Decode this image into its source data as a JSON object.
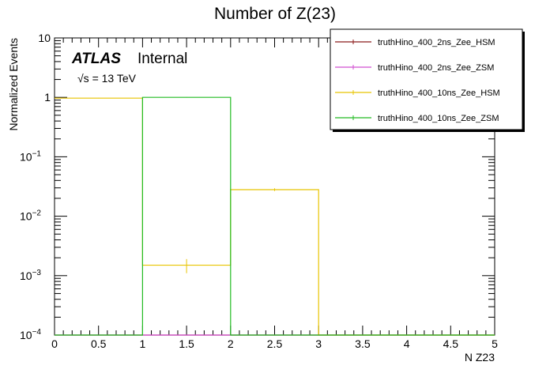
{
  "chart_data": {
    "type": "step-histogram",
    "title": "Number of Z(23)",
    "xlabel": "N Z23",
    "ylabel": "Normalized Events",
    "xlim": [
      0,
      5
    ],
    "ylim": [
      0.0001,
      10
    ],
    "yscale": "log",
    "x_ticks": [
      0,
      0.5,
      1,
      1.5,
      2,
      2.5,
      3,
      3.5,
      4,
      4.5,
      5
    ],
    "x_tick_labels": [
      "0",
      "0.5",
      "1",
      "1.5",
      "2",
      "2.5",
      "3",
      "3.5",
      "4",
      "4.5",
      "5"
    ],
    "y_ticks": [
      {
        "value": 10,
        "base": "10",
        "exp": ""
      },
      {
        "value": 1,
        "base": "1",
        "exp": ""
      },
      {
        "value": 0.1,
        "base": "10",
        "exp": "−1"
      },
      {
        "value": 0.01,
        "base": "10",
        "exp": "−2"
      },
      {
        "value": 0.001,
        "base": "10",
        "exp": "−3"
      },
      {
        "value": 0.0001,
        "base": "10",
        "exp": "−4"
      }
    ],
    "bin_edges": [
      0,
      1,
      2,
      3,
      4,
      5
    ],
    "series": [
      {
        "name": "truthHino_400_2ns_Zee_HSM",
        "color": "#8b1a1a",
        "values": [
          0.0001,
          0.0001,
          0.0001,
          0.0001,
          0.0001
        ],
        "errors": [
          0,
          0,
          0,
          0,
          0
        ]
      },
      {
        "name": "truthHino_400_2ns_Zee_ZSM",
        "color": "#d04fd0",
        "values": [
          0.0001,
          0.0001,
          0.0001,
          0.0001,
          0.0001
        ],
        "errors": [
          0,
          0,
          0,
          0,
          0
        ]
      },
      {
        "name": "truthHino_400_10ns_Zee_HSM",
        "color": "#e8c400",
        "values": [
          0.97,
          0.0015,
          0.028,
          0.0001,
          0.0001
        ],
        "errors": [
          0.01,
          0.0004,
          0.0015,
          0,
          0
        ]
      },
      {
        "name": "truthHino_400_10ns_Zee_ZSM",
        "color": "#22bb22",
        "values": [
          0.0001,
          1.0,
          0.0001,
          0.0001,
          0.0001
        ],
        "errors": [
          0,
          0.01,
          0,
          0,
          0
        ]
      }
    ],
    "legend_position": "top-right",
    "annotations": {
      "atlas": "ATLAS",
      "status": "Internal",
      "energy_sqrt": "√s",
      "energy_rest": " = 13 TeV"
    }
  }
}
